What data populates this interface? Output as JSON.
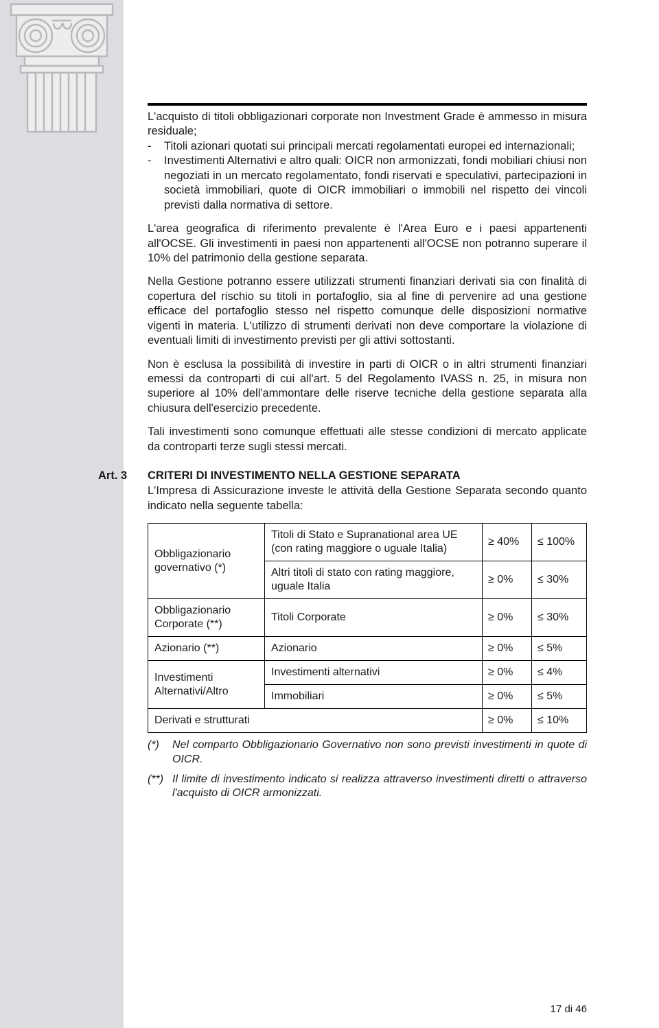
{
  "text": {
    "bullet1_pre": "-",
    "bullet1": "L'acquisto di titoli obbligazionari corporate non Investment Grade è ammesso in misura residuale;",
    "bullet2_pre": "-",
    "bullet2": "Titoli azionari quotati sui principali mercati regolamentati europei ed internazionali;",
    "bullet3_pre": "-",
    "bullet3": "Investimenti Alternativi e altro quali: OICR non armonizzati, fondi mobiliari chiusi non negoziati in un mercato regolamentato, fondi riservati e speculativi, partecipazioni in società immobiliari, quote di OICR immobiliari o immobili nel rispetto dei vincoli previsti dalla normativa di settore.",
    "p1": "L'area geografica di  riferimento prevalente è l'Area Euro e i paesi appartenenti all'OCSE. Gli investimenti in paesi non appartenenti all'OCSE non potranno superare il 10% del patrimonio della gestione separata.",
    "p2": "Nella Gestione potranno essere utilizzati strumenti finanziari derivati sia con finalità di copertura del  rischio su titoli in portafoglio, sia al fine di pervenire ad una gestione efficace del portafoglio stesso nel rispetto comunque delle disposizioni normative vigenti in materia. L'utilizzo di strumenti derivati non deve comportare la violazione di eventuali limiti di investimento previsti per gli attivi sottostanti.",
    "p3": "Non è esclusa la possibilità di investire in parti di OICR o in altri strumenti finanziari emessi da controparti di cui all'art. 5 del Regolamento IVASS  n. 25, in misura non superiore al 10% dell'ammontare delle riserve tecniche della gestione separata alla chiusura dell'esercizio precedente.",
    "p4": "Tali investimenti sono comunque effettuati alle stesse condizioni di mercato applicate da controparti terze sugli stessi mercati."
  },
  "section": {
    "art_label": "Art. 3",
    "title": "CRITERI DI INVESTIMENTO NELLA GESTIONE SEPARATA",
    "intro": "L'Impresa di Assicurazione investe le attività della Gestione Separata secondo quanto indicato nella seguente tabella:"
  },
  "table": {
    "rows": [
      {
        "cat": "Obbligazionario governativo (*)",
        "catRowspan": 2,
        "sub": "Titoli di Stato e Supranational area UE (con rating maggiore o uguale Italia)",
        "min": "≥ 40%",
        "max": "≤ 100%"
      },
      {
        "sub": "Altri titoli di stato con rating maggiore, uguale Italia",
        "min": "≥   0%",
        "max": "≤  30%"
      },
      {
        "cat": "Obbligazionario Corporate (**)",
        "sub": "Titoli Corporate",
        "min": "≥   0%",
        "max": "≤  30%"
      },
      {
        "cat": "Azionario (**)",
        "sub": "Azionario",
        "min": "≥   0%",
        "max": "≤    5%"
      },
      {
        "cat": "Investimenti Alternativi/Altro",
        "catRowspan": 2,
        "sub": "Investimenti alternativi",
        "min": "≥   0%",
        "max": "≤    4%"
      },
      {
        "sub": "Immobiliari",
        "min": "≥   0%",
        "max": "≤    5%"
      },
      {
        "cat": "Derivati e strutturati",
        "catColspan": 2,
        "min": "≥   0%",
        "max": "≤  10%"
      }
    ],
    "col_widths": [
      "170px",
      "auto",
      "72px",
      "80px"
    ]
  },
  "footnotes": {
    "f1_mark": "(*)",
    "f1": "Nel comparto Obbligazionario Governativo non sono previsti investimenti in quote di OICR.",
    "f2_mark": "(**)",
    "f2": "Il limite di investimento indicato si realizza attraverso investimenti diretti o attraverso l'acquisto di OICR armonizzati."
  },
  "page": "17 di 46",
  "colors": {
    "sidebar_bg": "#dcdde0",
    "column_stroke": "#b7b8bc",
    "column_fill": "#eceded"
  }
}
